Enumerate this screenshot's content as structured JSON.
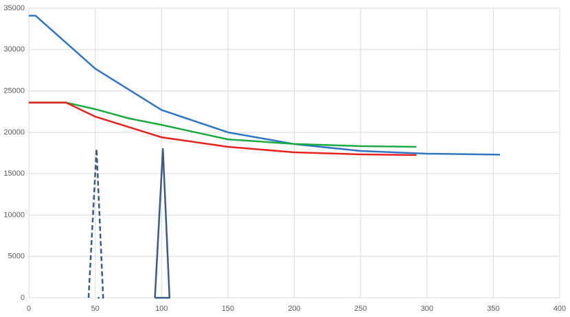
{
  "chart_data": {
    "type": "line",
    "xlim": [
      0,
      400
    ],
    "xticks": [
      0,
      50,
      100,
      150,
      200,
      250,
      300,
      350,
      400
    ],
    "ylim": [
      0,
      35000
    ],
    "yticks": [
      0,
      5000,
      10000,
      15000,
      20000,
      25000,
      30000,
      35000
    ],
    "grid": true,
    "series": [
      {
        "color": "#2e75c6",
        "x": [
          0,
          5,
          50,
          100,
          150,
          200,
          250,
          300,
          355
        ],
        "values": [
          34100,
          34100,
          27700,
          22700,
          20000,
          18580,
          17750,
          17420,
          17300
        ]
      },
      {
        "color": "#1aab40",
        "x": [
          0,
          28,
          50,
          75,
          100,
          150,
          200,
          250,
          292
        ],
        "values": [
          23600,
          23600,
          22800,
          21700,
          20900,
          19150,
          18600,
          18330,
          18250
        ]
      },
      {
        "color": "#e8201e",
        "x": [
          0,
          28,
          50,
          100,
          150,
          200,
          250,
          292
        ],
        "values": [
          23600,
          23600,
          21900,
          19400,
          18250,
          17580,
          17330,
          17250
        ]
      },
      {
        "color": "#3a5a85",
        "dashed": true,
        "x": [
          45,
          51,
          56,
          52
        ],
        "values": [
          0,
          18000,
          0,
          0
        ]
      },
      {
        "color": "#3a5a85",
        "dashed": false,
        "x": [
          95,
          101,
          106,
          95
        ],
        "values": [
          0,
          18000,
          0,
          0
        ]
      }
    ]
  }
}
